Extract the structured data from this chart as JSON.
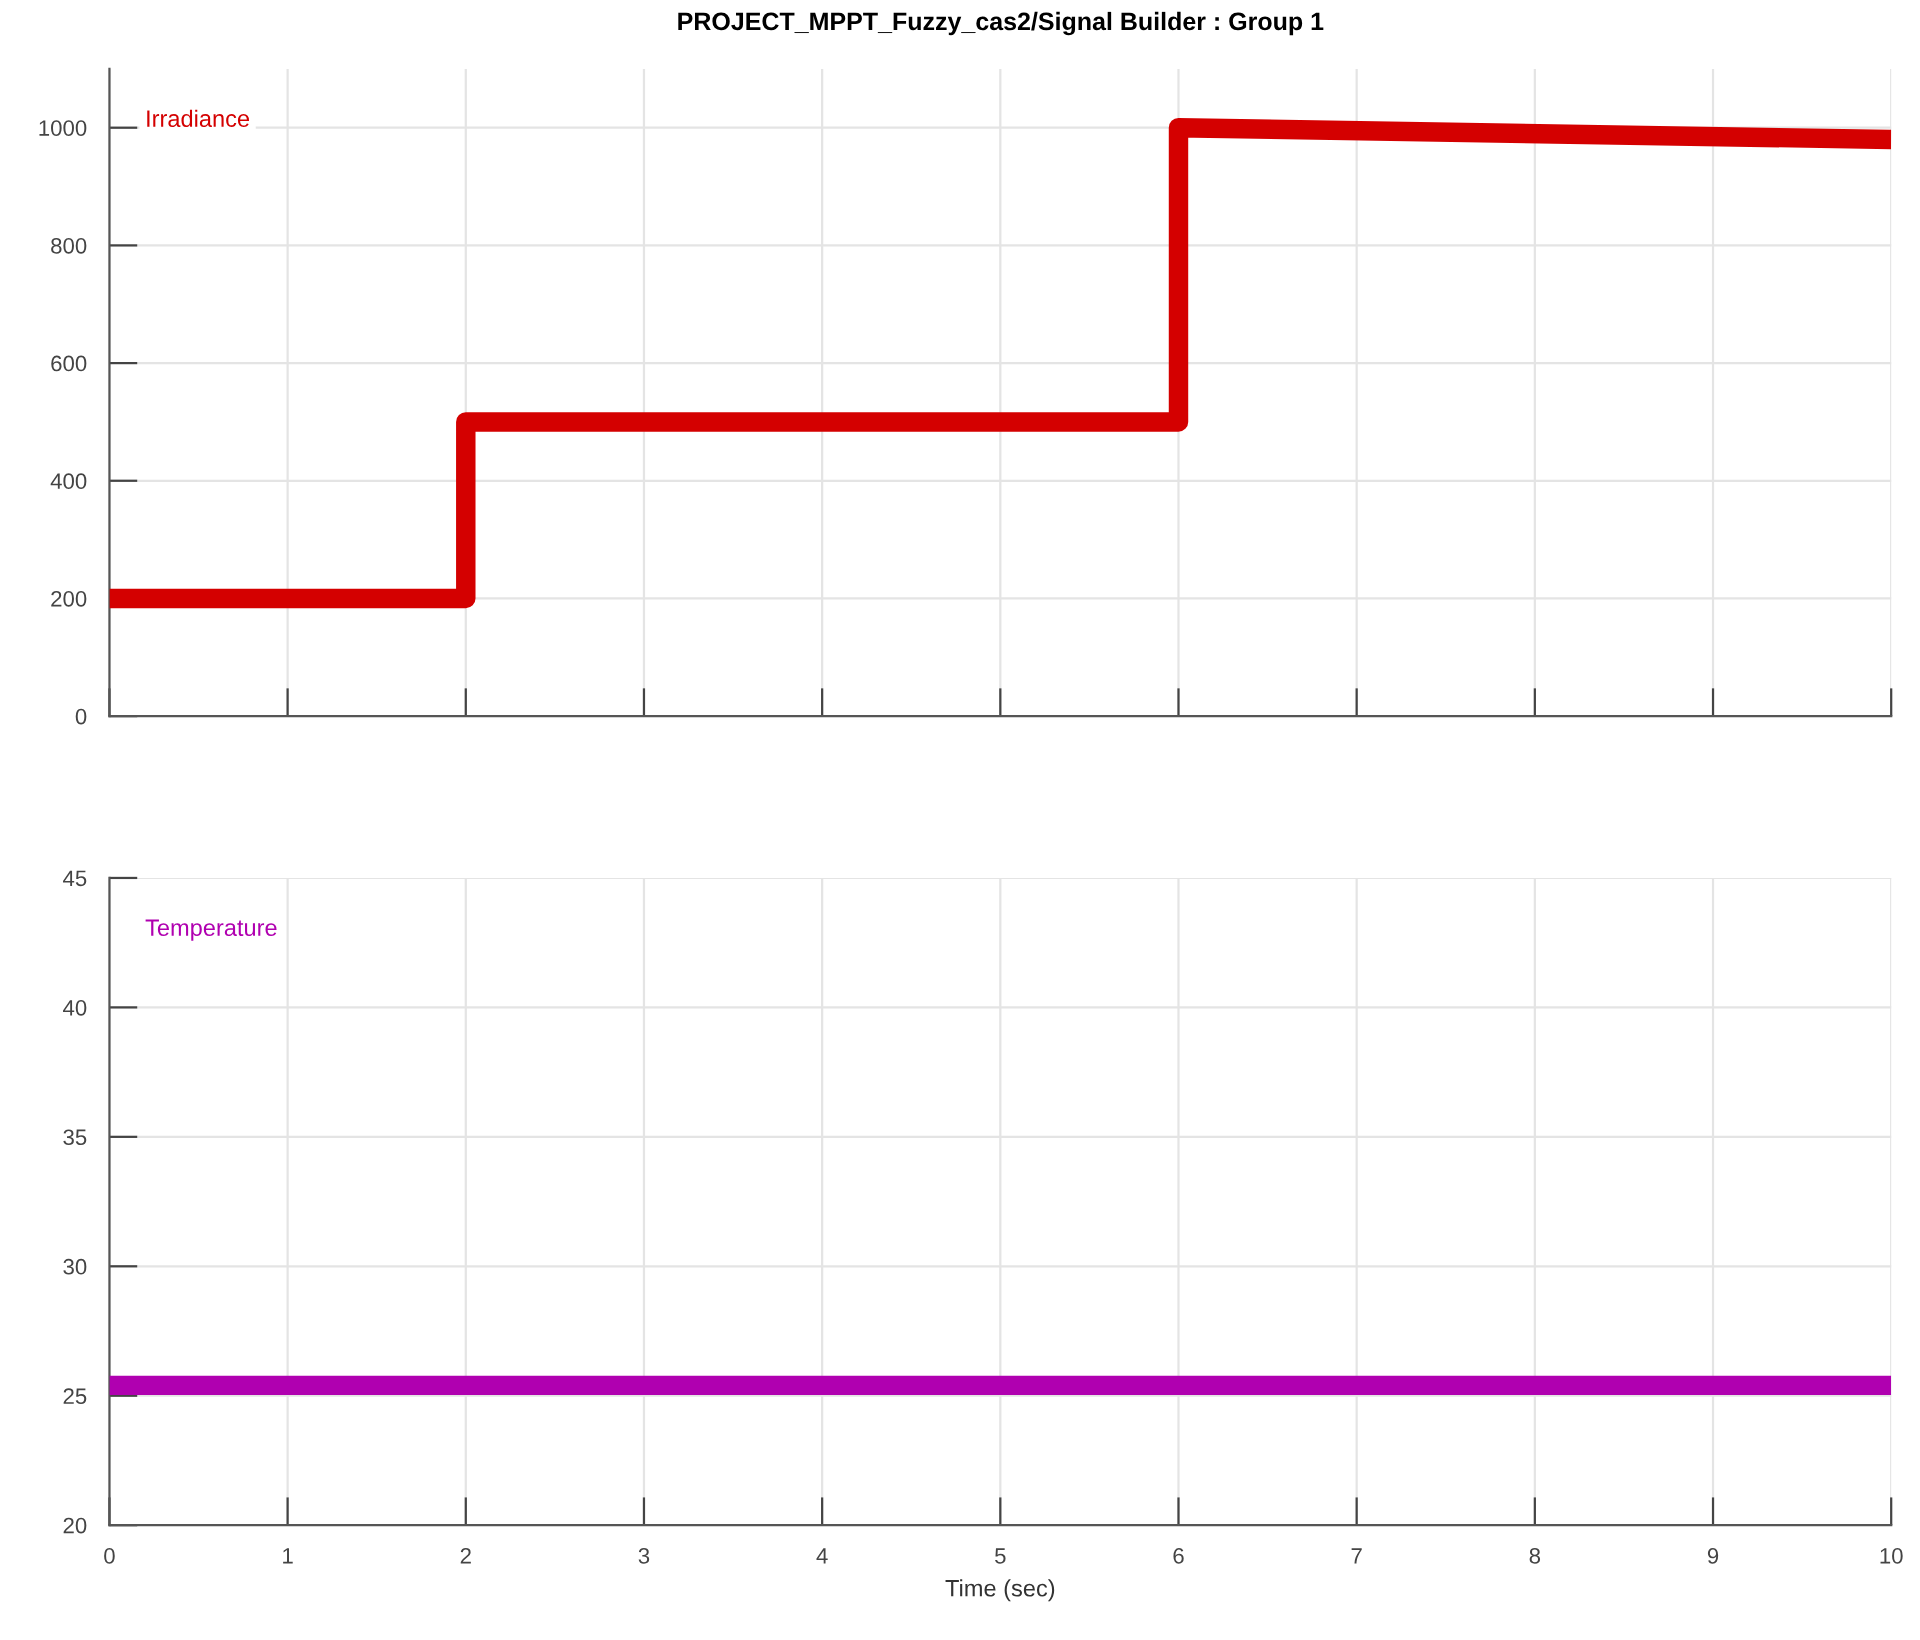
{
  "chart_data": [
    {
      "type": "line",
      "title": "PROJECT_MPPT_Fuzzy_cas2/Signal Builder : Group 1",
      "x": [
        0,
        2,
        2,
        6,
        6,
        10
      ],
      "series": [
        {
          "name": "Irradiance",
          "color": "#d40000",
          "values": [
            200,
            200,
            500,
            500,
            1000,
            980
          ]
        }
      ],
      "xlim": [
        0,
        10
      ],
      "xticks": [
        0,
        1,
        2,
        3,
        4,
        5,
        6,
        7,
        8,
        9,
        10
      ],
      "ylim": [
        0,
        1100
      ],
      "yticks": [
        0,
        200,
        400,
        600,
        800,
        1000
      ],
      "grid": true,
      "tick_labels": "y"
    },
    {
      "type": "line",
      "xlabel": "Time (sec)",
      "x": [
        0,
        10
      ],
      "series": [
        {
          "name": "Temperature",
          "color": "#b000b0",
          "values": [
            25.4,
            25.4
          ]
        }
      ],
      "xlim": [
        0,
        10
      ],
      "xticks": [
        0,
        1,
        2,
        3,
        4,
        5,
        6,
        7,
        8,
        9,
        10
      ],
      "ylim": [
        20,
        45
      ],
      "yticks": [
        20,
        25,
        30,
        35,
        40,
        45
      ],
      "grid": true
    }
  ]
}
